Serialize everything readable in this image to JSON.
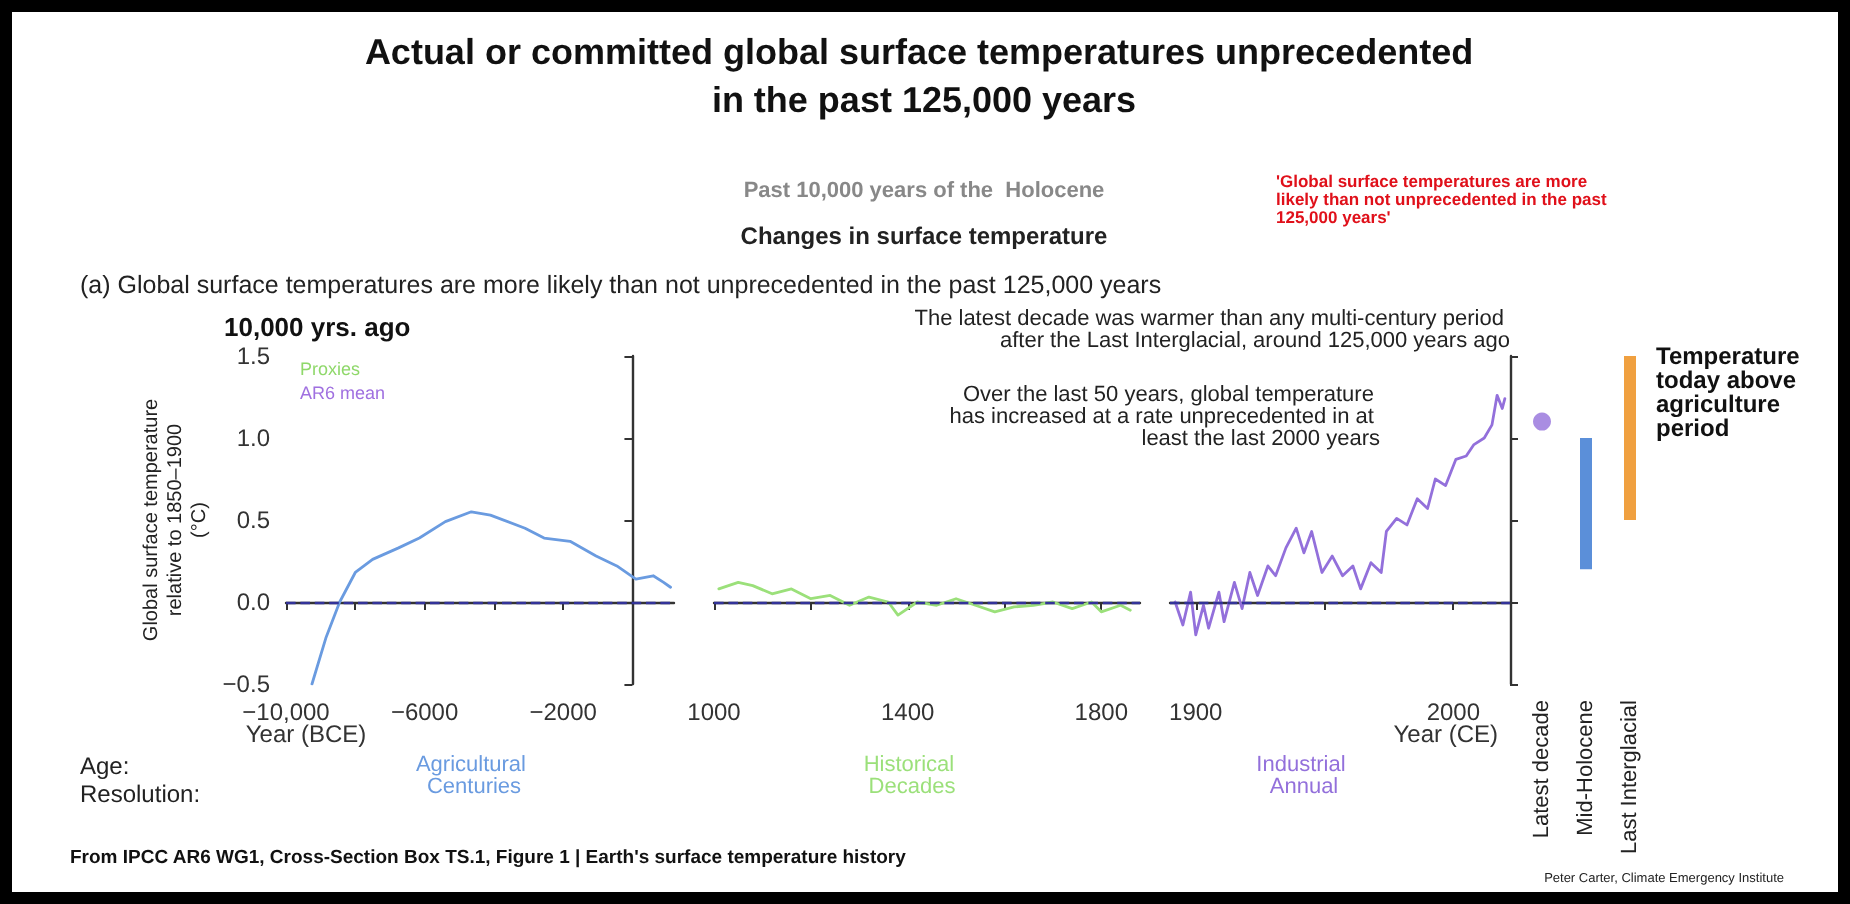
{
  "chart_data": [
    {
      "type": "line",
      "title": "Actual or committed global surface temperatures unprecedented in the past 125,000 years",
      "xlabel": "Year (BCE)",
      "ylabel": "Global surface temperature relative to 1850–1900 (°C)",
      "annotations": [
        "Past 10,000 years of the  Holocene",
        "Changes in surface temperature",
        "(a) Global surface temperatures are more likely than not unprecedented in the past 125,000 years",
        "'Global surface temperatures are more likely than not unprecedented in the past 125,000 years'",
        "10,000 yrs. ago",
        "Proxies",
        "AR6 mean",
        "Age:",
        "Resolution:",
        "Agricultural Centuries",
        "From IPCC AR6 WG1, Cross-Section Box TS.1, Figure 1 | Earth's surface temperature history",
        "Peter Carter, Climate Emergency Institute"
      ],
      "series": [
        {
          "color": "#6a9be0",
          "x": [
            -9250,
            -8850,
            -8450,
            -8000,
            -7500,
            -6750,
            -6150,
            -5400,
            -4650,
            -4100,
            -3100,
            -2550,
            -1800,
            -1050,
            -450,
            100,
            600,
            900,
            1100
          ],
          "values": [
            -0.5,
            -0.22,
            0,
            0.18,
            0.26,
            0.33,
            0.39,
            0.49,
            0.55,
            0.53,
            0.45,
            0.39,
            0.37,
            0.28,
            0.22,
            0.14,
            0.16,
            0.12,
            0.09
          ]
        }
      ],
      "xlim": [
        -10000,
        1200
      ],
      "xticks": [
        {
          "value": -10000,
          "label": "−10,000"
        },
        {
          "value": -8000,
          "label": null
        },
        {
          "value": -6000,
          "label": "−6000"
        },
        {
          "value": -4000,
          "label": null
        },
        {
          "value": -2000,
          "label": "−2000"
        },
        {
          "value": 0,
          "label": null
        }
      ],
      "ylim": [
        -0.5,
        1.5
      ],
      "yticks": [
        {
          "value": -0.5,
          "label": "−0.5"
        },
        {
          "value": 0,
          "label": "0.0"
        },
        {
          "value": 0.5,
          "label": "0.5"
        },
        {
          "value": 1,
          "label": "1.0"
        },
        {
          "value": 1.5,
          "label": "1.5"
        }
      ],
      "ref_lines": [
        {
          "axis": "y",
          "value": 0,
          "color": "#333399",
          "line_style": "dashed"
        }
      ]
    },
    {
      "type": "line",
      "annotations": [
        "Historical Decades"
      ],
      "series": [
        {
          "color": "#9be07a",
          "x": [
            1010,
            1050,
            1080,
            1120,
            1160,
            1200,
            1240,
            1280,
            1320,
            1360,
            1380,
            1420,
            1460,
            1500,
            1540,
            1580,
            1620,
            1660,
            1700,
            1740,
            1780,
            1800,
            1840,
            1860
          ],
          "values": [
            0.08,
            0.12,
            0.1,
            0.05,
            0.08,
            0.02,
            0.04,
            -0.02,
            0.03,
            0,
            -0.08,
            0,
            -0.02,
            0.02,
            -0.02,
            -0.06,
            -0.03,
            -0.02,
            0,
            -0.04,
            0,
            -0.06,
            -0.02,
            -0.05
          ]
        }
      ],
      "xlim": [
        1000,
        1880
      ],
      "xticks": [
        1000,
        {
          "value": 1200,
          "label": null
        },
        1400,
        {
          "value": 1600,
          "label": null
        },
        1800
      ],
      "ylim": [
        -0.5,
        1.5
      ],
      "tick_labels": "x",
      "ref_lines": [
        {
          "axis": "y",
          "value": 0,
          "color": "#333399",
          "line_style": "dashed"
        }
      ]
    },
    {
      "type": "line",
      "xlabel": "Year (CE)",
      "annotations": [
        "The latest decade was warmer than any multi-century period after the Last Interglacial, around 125,000 years ago",
        "Over the last 50 years, global temperature has increased at a rate unprecedented in at least the last 2000 years",
        "Industrial Annual"
      ],
      "series": [
        {
          "color": "#9370db",
          "x": [
            1892,
            1895,
            1898,
            1900,
            1903,
            1905,
            1909,
            1911,
            1915,
            1918,
            1921,
            1924,
            1928,
            1931,
            1935,
            1939,
            1942,
            1945,
            1949,
            1953,
            1957,
            1961,
            1964,
            1968,
            1972,
            1974,
            1978,
            1982,
            1986,
            1990,
            1993,
            1997,
            2001,
            2005,
            2008,
            2012,
            2015,
            2017,
            2019,
            2020
          ],
          "values": [
            0,
            -0.14,
            0.06,
            -0.2,
            -0.02,
            -0.16,
            0.06,
            -0.12,
            0.12,
            -0.04,
            0.18,
            0.04,
            0.22,
            0.16,
            0.33,
            0.45,
            0.3,
            0.43,
            0.18,
            0.28,
            0.16,
            0.22,
            0.08,
            0.24,
            0.18,
            0.43,
            0.51,
            0.47,
            0.63,
            0.57,
            0.75,
            0.71,
            0.87,
            0.89,
            0.96,
            1.0,
            1.08,
            1.26,
            1.18,
            1.24
          ]
        }
      ],
      "xlim": [
        1890,
        2022
      ],
      "xticks": [
        1900,
        {
          "value": 1950,
          "label": null
        },
        2000
      ],
      "ylim": [
        -0.5,
        1.5
      ],
      "yticks": [
        {
          "value": -0.5,
          "label": null
        },
        {
          "value": 0,
          "label": null
        },
        {
          "value": 0.5,
          "label": null
        },
        {
          "value": 1,
          "label": null
        },
        {
          "value": 1.5,
          "label": null
        }
      ],
      "tick_labels": "x",
      "ref_lines": [
        {
          "axis": "y",
          "value": 0,
          "color": "#333399",
          "line_style": "dashed"
        }
      ]
    },
    {
      "type": "bar",
      "categories": [
        "Latest decade",
        "Mid-Holocene",
        "Last Interglacial"
      ],
      "annotations": [
        "Temperature today above agriculture period"
      ],
      "series": [
        {
          "type": "bar",
          "values": [
            null,
            0.8,
            1.0
          ],
          "base": [
            null,
            0.2,
            0.5
          ],
          "colors": [
            null,
            "#5b8fd9",
            "#f0a040"
          ]
        },
        {
          "type": "scatter",
          "x": [
            "Latest decade"
          ],
          "values": [
            1.1
          ],
          "color": "#9370db"
        }
      ],
      "marker": "circle",
      "ylim": [
        -0.5,
        1.5
      ],
      "tick_labels": "x"
    }
  ]
}
